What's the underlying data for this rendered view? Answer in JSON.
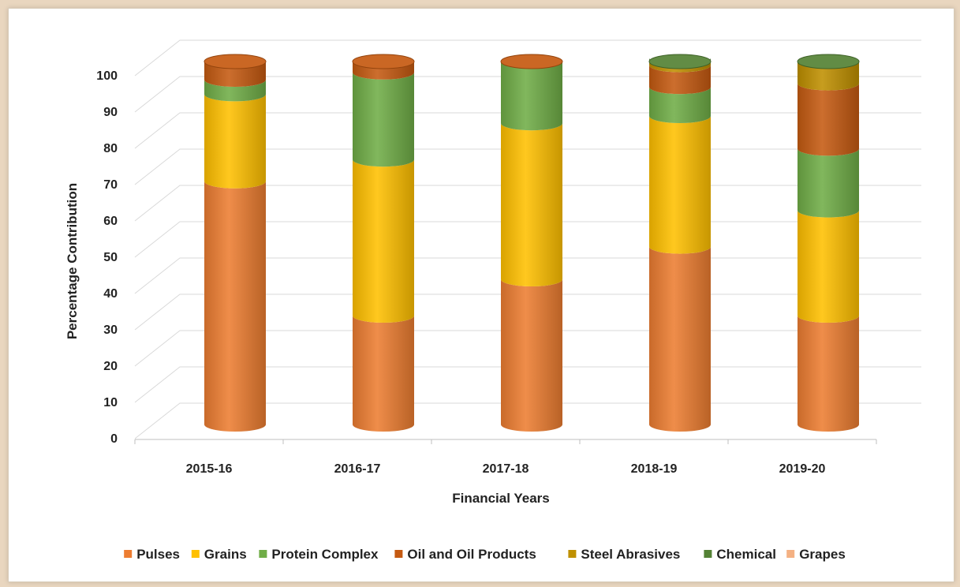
{
  "chart_data": {
    "type": "bar",
    "stacked": true,
    "style": "3d-cylinder",
    "xlabel": "Financial Years",
    "ylabel": "Percentage Contribution",
    "ylim": [
      0,
      100
    ],
    "yticks": [
      0,
      10,
      20,
      30,
      40,
      50,
      60,
      70,
      80,
      90,
      100
    ],
    "grid": true,
    "legend_position": "bottom",
    "categories": [
      "2015-16",
      "2016-17",
      "2017-18",
      "2018-19",
      "2019-20"
    ],
    "series": [
      {
        "name": "Pulses",
        "color": "#ed7d31",
        "values": [
          67,
          30,
          40,
          49,
          30
        ]
      },
      {
        "name": "Grains",
        "color": "#ffc000",
        "values": [
          24,
          43,
          43,
          36,
          29
        ]
      },
      {
        "name": "Protein Complex",
        "color": "#70ad47",
        "values": [
          4,
          24,
          17,
          8,
          17
        ]
      },
      {
        "name": "Oil and Oil Products",
        "color": "#c55a11",
        "values": [
          8,
          8,
          5,
          6,
          18
        ]
      },
      {
        "name": "Steel Abrasives",
        "color": "#bf9000",
        "values": [
          0,
          0,
          0,
          2,
          6
        ]
      },
      {
        "name": "Chemical",
        "color": "#548235",
        "values": [
          0,
          0,
          0,
          1,
          3
        ]
      },
      {
        "name": "Grapes",
        "color": "#f4b183",
        "values": [
          0,
          0,
          0,
          0,
          0
        ]
      }
    ]
  }
}
